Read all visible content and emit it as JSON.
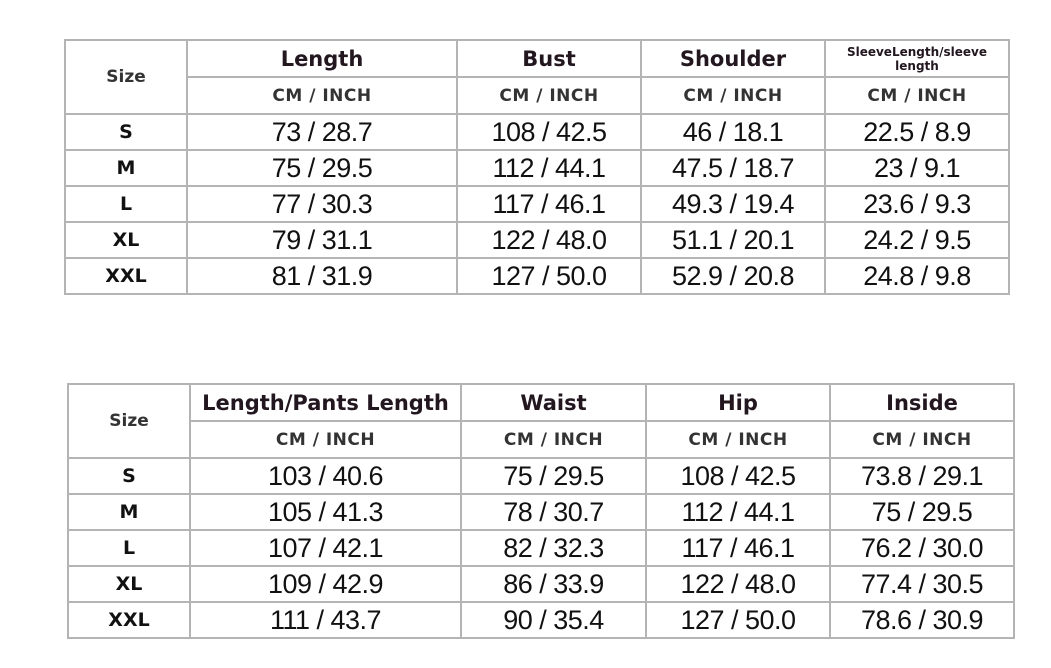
{
  "tables": [
    {
      "size_label": "Size",
      "unit_label": "CM / INCH",
      "columns": [
        "Length",
        "Bust",
        "Shoulder",
        "SleeveLength/sleeve length"
      ],
      "rows": [
        {
          "size": "S",
          "values": [
            "73 / 28.7",
            "108 / 42.5",
            "46 / 18.1",
            "22.5 / 8.9"
          ]
        },
        {
          "size": "M",
          "values": [
            "75 / 29.5",
            "112 / 44.1",
            "47.5 / 18.7",
            "23 / 9.1"
          ]
        },
        {
          "size": "L",
          "values": [
            "77 / 30.3",
            "117 / 46.1",
            "49.3 / 19.4",
            "23.6 / 9.3"
          ]
        },
        {
          "size": "XL",
          "values": [
            "79 / 31.1",
            "122 / 48.0",
            "51.1 / 20.1",
            "24.2 / 9.5"
          ]
        },
        {
          "size": "XXL",
          "values": [
            "81 / 31.9",
            "127 / 50.0",
            "52.9 / 20.8",
            "24.8 / 9.8"
          ]
        }
      ]
    },
    {
      "size_label": "Size",
      "unit_label": "CM / INCH",
      "columns": [
        "Length/Pants Length",
        "Waist",
        "Hip",
        "Inside"
      ],
      "rows": [
        {
          "size": "S",
          "values": [
            "103 / 40.6",
            "75 / 29.5",
            "108 / 42.5",
            "73.8 / 29.1"
          ]
        },
        {
          "size": "M",
          "values": [
            "105 / 41.3",
            "78 / 30.7",
            "112 / 44.1",
            "75 / 29.5"
          ]
        },
        {
          "size": "L",
          "values": [
            "107 / 42.1",
            "82 / 32.3",
            "117 / 46.1",
            "76.2 / 30.0"
          ]
        },
        {
          "size": "XL",
          "values": [
            "109 / 42.9",
            "86 / 33.9",
            "122 / 48.0",
            "77.4 / 30.5"
          ]
        },
        {
          "size": "XXL",
          "values": [
            "111 / 43.7",
            "90 / 35.4",
            "127 / 50.0",
            "78.6 / 30.9"
          ]
        }
      ]
    }
  ]
}
